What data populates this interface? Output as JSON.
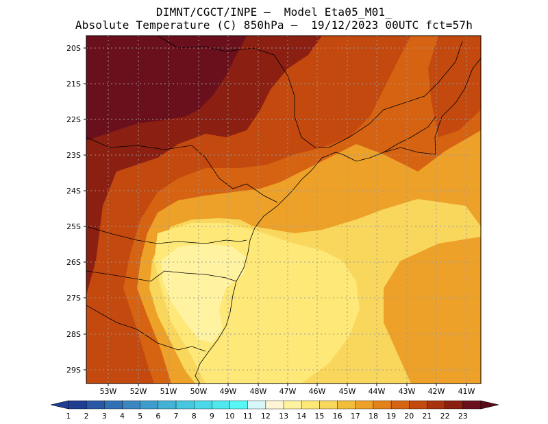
{
  "title": {
    "line1": "DIMNT/CGCT/INPE –  Model Eta05_M01_",
    "line2": "Absolute Temperature (C) 850hPa –  19/12/2023 00UTC fct=57h"
  },
  "map": {
    "lat_labels": [
      "20S",
      "21S",
      "22S",
      "23S",
      "24S",
      "25S",
      "26S",
      "27S",
      "28S",
      "29S"
    ],
    "lon_labels": [
      "53W",
      "52W",
      "51W",
      "50W",
      "49W",
      "48W",
      "47W",
      "46W",
      "45W",
      "44W",
      "43W",
      "42W",
      "41W"
    ],
    "lat_values": [
      -20,
      -21,
      -22,
      -23,
      -24,
      -25,
      -26,
      -27,
      -28,
      -29
    ],
    "lon_values": [
      -53,
      -52,
      -51,
      -50,
      -49,
      -48,
      -47,
      -46,
      -45,
      -44,
      -43,
      -42,
      -41
    ],
    "domain": {
      "lon_min": -53.6,
      "lon_max": -40.45,
      "lat_max": -19.75,
      "lat_min": -29.4
    }
  },
  "colorbar": {
    "labels": [
      "1",
      "2",
      "3",
      "4",
      "5",
      "6",
      "7",
      "8",
      "9",
      "10",
      "11",
      "12",
      "13",
      "14",
      "15",
      "16",
      "17",
      "18",
      "19",
      "20",
      "21",
      "22",
      "23"
    ],
    "colors": [
      "#1f3d91",
      "#2a57a6",
      "#3270b4",
      "#3b86c0",
      "#3e9ccc",
      "#43b2d6",
      "#46c6df",
      "#4bd8e8",
      "#50e8ee",
      "#57f7f7",
      "#d7f7fa",
      "#fff5d6",
      "#fff2a0",
      "#fde878",
      "#f9d65c",
      "#f3bd3c",
      "#eda128",
      "#e3821a",
      "#d66312",
      "#c3490e",
      "#a7320e",
      "#8a1f12",
      "#6a0f1c"
    ],
    "left_cap_color": "#1f3d91",
    "right_cap_color": "#5a0a18"
  },
  "field": {
    "legend_units": "C",
    "base_color": "#f9d65c",
    "regions": [
      {
        "name": "outer-warm",
        "color": "#eda128"
      },
      {
        "name": "sw-interior",
        "color": "#d66312"
      },
      {
        "name": "north-hot",
        "color": "#c3490e"
      },
      {
        "name": "northwest-core",
        "color": "#8a1f12"
      },
      {
        "name": "northwest-peak",
        "color": "#6a0f1c"
      },
      {
        "name": "coastal-mild",
        "color": "#fde878"
      },
      {
        "name": "coastal-cool",
        "color": "#fff2a0"
      }
    ]
  }
}
